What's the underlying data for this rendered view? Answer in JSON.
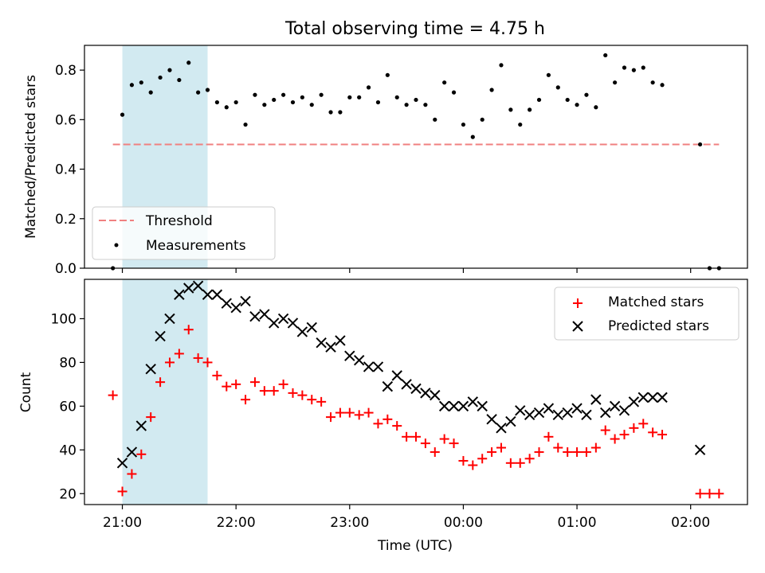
{
  "chart_data": [
    {
      "type": "scatter",
      "title": "Total observing time = 4.75 h",
      "ylabel": "Matched/Predicted stars",
      "xlim": [
        "20:40",
        "02:30"
      ],
      "ylim": [
        0,
        0.9
      ],
      "yticks": [
        "0.0",
        "0.2",
        "0.4",
        "0.6",
        "0.8"
      ],
      "shaded_interval": [
        "21:00",
        "21:45"
      ],
      "shaded_color": "#add8e6",
      "threshold": {
        "name": "Threshold",
        "value": 0.5,
        "x_range": [
          "20:55",
          "02:15"
        ],
        "color": "#f08080",
        "style": "dashed"
      },
      "series": [
        {
          "name": "Measurements",
          "color": "#000000",
          "marker": "dot",
          "x": [
            "20:55",
            "21:00",
            "21:05",
            "21:10",
            "21:15",
            "21:20",
            "21:25",
            "21:30",
            "21:35",
            "21:40",
            "21:45",
            "21:50",
            "21:55",
            "22:00",
            "22:05",
            "22:10",
            "22:15",
            "22:20",
            "22:25",
            "22:30",
            "22:35",
            "22:40",
            "22:45",
            "22:50",
            "22:55",
            "23:00",
            "23:05",
            "23:10",
            "23:15",
            "23:20",
            "23:25",
            "23:30",
            "23:35",
            "23:40",
            "23:45",
            "23:50",
            "23:55",
            "00:00",
            "00:05",
            "00:10",
            "00:15",
            "00:20",
            "00:25",
            "00:30",
            "00:35",
            "00:40",
            "00:45",
            "00:50",
            "00:55",
            "01:00",
            "01:05",
            "01:10",
            "01:15",
            "01:20",
            "01:25",
            "01:30",
            "01:35",
            "01:40",
            "01:45",
            "02:05",
            "02:10",
            "02:15"
          ],
          "y": [
            0.0,
            0.62,
            0.74,
            0.75,
            0.71,
            0.77,
            0.8,
            0.76,
            0.83,
            0.71,
            0.72,
            0.67,
            0.65,
            0.67,
            0.58,
            0.7,
            0.66,
            0.68,
            0.7,
            0.67,
            0.69,
            0.66,
            0.7,
            0.63,
            0.63,
            0.69,
            0.69,
            0.73,
            0.67,
            0.78,
            0.69,
            0.66,
            0.68,
            0.66,
            0.6,
            0.75,
            0.71,
            0.58,
            0.53,
            0.6,
            0.72,
            0.82,
            0.64,
            0.58,
            0.64,
            0.68,
            0.78,
            0.73,
            0.68,
            0.66,
            0.7,
            0.65,
            0.86,
            0.75,
            0.81,
            0.8,
            0.81,
            0.75,
            0.74,
            0.5,
            0.0,
            0.0
          ]
        }
      ],
      "legend": {
        "placement": "lower-left"
      }
    },
    {
      "type": "scatter",
      "ylabel": "Count",
      "xlabel": "Time (UTC)",
      "xticks": [
        "21:00",
        "22:00",
        "23:00",
        "00:00",
        "01:00",
        "02:00"
      ],
      "xlim": [
        "20:40",
        "02:30"
      ],
      "ylim": [
        15,
        118
      ],
      "yticks": [
        "20",
        "40",
        "60",
        "80",
        "100"
      ],
      "shaded_interval": [
        "21:00",
        "21:45"
      ],
      "series": [
        {
          "name": "Matched stars",
          "color": "#ff0000",
          "marker": "plus",
          "x": [
            "20:55",
            "21:00",
            "21:05",
            "21:10",
            "21:15",
            "21:20",
            "21:25",
            "21:30",
            "21:35",
            "21:40",
            "21:45",
            "21:50",
            "21:55",
            "22:00",
            "22:05",
            "22:10",
            "22:15",
            "22:20",
            "22:25",
            "22:30",
            "22:35",
            "22:40",
            "22:45",
            "22:50",
            "22:55",
            "23:00",
            "23:05",
            "23:10",
            "23:15",
            "23:20",
            "23:25",
            "23:30",
            "23:35",
            "23:40",
            "23:45",
            "23:50",
            "23:55",
            "00:00",
            "00:05",
            "00:10",
            "00:15",
            "00:20",
            "00:25",
            "00:30",
            "00:35",
            "00:40",
            "00:45",
            "00:50",
            "00:55",
            "01:00",
            "01:05",
            "01:10",
            "01:15",
            "01:20",
            "01:25",
            "01:30",
            "01:35",
            "01:40",
            "01:45",
            "02:05",
            "02:10",
            "02:15"
          ],
          "y": [
            65,
            21,
            29,
            38,
            55,
            71,
            80,
            84,
            95,
            82,
            80,
            74,
            69,
            70,
            63,
            71,
            67,
            67,
            70,
            66,
            65,
            63,
            62,
            55,
            57,
            57,
            56,
            57,
            52,
            54,
            51,
            46,
            46,
            43,
            39,
            45,
            43,
            35,
            33,
            36,
            39,
            41,
            34,
            34,
            36,
            39,
            46,
            41,
            39,
            39,
            39,
            41,
            49,
            45,
            47,
            50,
            52,
            48,
            47,
            20,
            20,
            20
          ]
        },
        {
          "name": "Predicted stars",
          "color": "#000000",
          "marker": "x",
          "x": [
            "21:00",
            "21:05",
            "21:10",
            "21:15",
            "21:20",
            "21:25",
            "21:30",
            "21:35",
            "21:40",
            "21:45",
            "21:50",
            "21:55",
            "22:00",
            "22:05",
            "22:10",
            "22:15",
            "22:20",
            "22:25",
            "22:30",
            "22:35",
            "22:40",
            "22:45",
            "22:50",
            "22:55",
            "23:00",
            "23:05",
            "23:10",
            "23:15",
            "23:20",
            "23:25",
            "23:30",
            "23:35",
            "23:40",
            "23:45",
            "23:50",
            "23:55",
            "00:00",
            "00:05",
            "00:10",
            "00:15",
            "00:20",
            "00:25",
            "00:30",
            "00:35",
            "00:40",
            "00:45",
            "00:50",
            "00:55",
            "01:00",
            "01:05",
            "01:10",
            "01:15",
            "01:20",
            "01:25",
            "01:30",
            "01:35",
            "01:40",
            "01:45",
            "02:05"
          ],
          "y": [
            34,
            39,
            51,
            77,
            92,
            100,
            111,
            114,
            115,
            111,
            111,
            107,
            105,
            108,
            101,
            102,
            98,
            100,
            98,
            94,
            96,
            89,
            87,
            90,
            83,
            81,
            78,
            78,
            69,
            74,
            70,
            68,
            66,
            65,
            60,
            60,
            60,
            62,
            60,
            54,
            50,
            53,
            58,
            56,
            57,
            59,
            56,
            57,
            59,
            56,
            63,
            57,
            60,
            58,
            62,
            64,
            64,
            64,
            40
          ]
        }
      ],
      "legend": {
        "placement": "upper-right"
      }
    }
  ]
}
